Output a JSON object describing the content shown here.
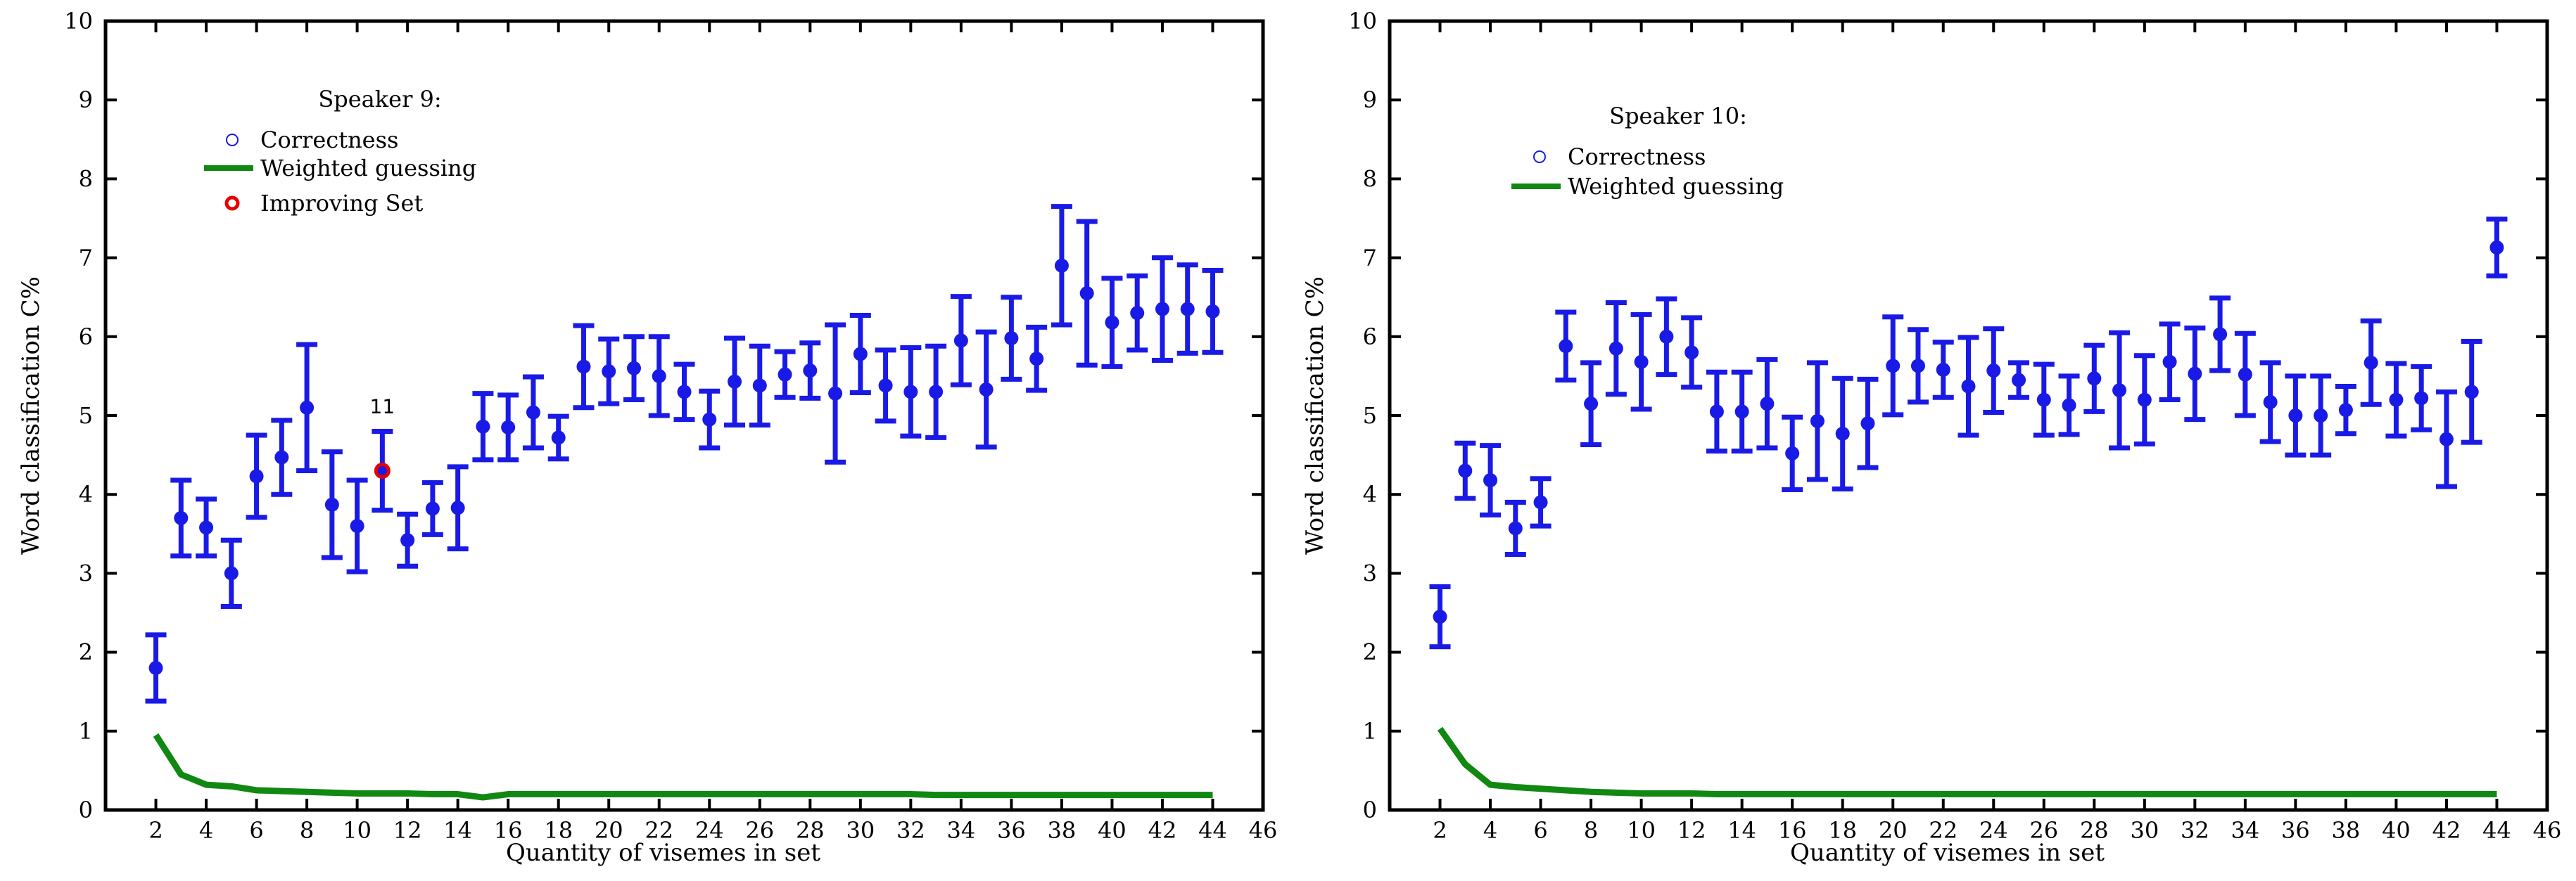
{
  "chart_data": [
    {
      "type": "scatter",
      "title": "Speaker 9:",
      "xlabel": "Quantity of visemes in set",
      "ylabel": "Word classification C%",
      "xlim": [
        0,
        46
      ],
      "ylim": [
        0,
        10
      ],
      "xticks": [
        2,
        4,
        6,
        8,
        10,
        12,
        14,
        16,
        18,
        20,
        22,
        24,
        26,
        28,
        30,
        32,
        34,
        36,
        38,
        40,
        42,
        44,
        46
      ],
      "yticks": [
        0,
        1,
        2,
        3,
        4,
        5,
        6,
        7,
        8,
        9,
        10
      ],
      "legend": [
        "Correctness",
        "Weighted guessing",
        "Improving Set"
      ],
      "legend_position": "top-left",
      "colors": {
        "correctness": "#1a1ae6",
        "guessing": "#118811",
        "improving": "#e60000"
      },
      "correctness": {
        "x": [
          2,
          3,
          4,
          5,
          6,
          7,
          8,
          9,
          10,
          11,
          12,
          13,
          14,
          15,
          16,
          17,
          18,
          19,
          20,
          21,
          22,
          23,
          24,
          25,
          26,
          27,
          28,
          29,
          30,
          31,
          32,
          33,
          34,
          35,
          36,
          37,
          38,
          39,
          40,
          41,
          42,
          43,
          44
        ],
        "y": [
          1.8,
          3.7,
          3.58,
          3.0,
          4.23,
          4.47,
          5.1,
          3.87,
          3.6,
          4.3,
          3.42,
          3.82,
          3.83,
          4.86,
          4.85,
          5.04,
          4.72,
          5.62,
          5.56,
          5.6,
          5.5,
          5.3,
          4.95,
          5.43,
          5.38,
          5.52,
          5.57,
          5.28,
          5.78,
          5.38,
          5.3,
          5.3,
          5.95,
          5.33,
          5.98,
          5.72,
          6.9,
          6.55,
          6.18,
          6.3,
          6.35,
          6.35,
          6.32
        ],
        "err": [
          0.42,
          0.48,
          0.36,
          0.42,
          0.52,
          0.47,
          0.8,
          0.67,
          0.58,
          0.5,
          0.33,
          0.33,
          0.52,
          0.42,
          0.41,
          0.45,
          0.27,
          0.52,
          0.41,
          0.4,
          0.5,
          0.35,
          0.36,
          0.55,
          0.5,
          0.29,
          0.35,
          0.87,
          0.49,
          0.45,
          0.56,
          0.58,
          0.56,
          0.73,
          0.52,
          0.4,
          0.75,
          0.91,
          0.56,
          0.47,
          0.65,
          0.56,
          0.52
        ]
      },
      "guessing": {
        "x": [
          2,
          3,
          4,
          5,
          6,
          7,
          8,
          9,
          10,
          11,
          12,
          13,
          14,
          15,
          16,
          17,
          18,
          19,
          20,
          21,
          22,
          23,
          24,
          25,
          26,
          27,
          28,
          29,
          30,
          31,
          32,
          33,
          34,
          35,
          36,
          37,
          38,
          39,
          40,
          41,
          42,
          43,
          44
        ],
        "y": [
          0.95,
          0.45,
          0.32,
          0.3,
          0.25,
          0.24,
          0.23,
          0.22,
          0.21,
          0.21,
          0.21,
          0.2,
          0.2,
          0.16,
          0.2,
          0.2,
          0.2,
          0.2,
          0.2,
          0.2,
          0.2,
          0.2,
          0.2,
          0.2,
          0.2,
          0.2,
          0.2,
          0.2,
          0.2,
          0.2,
          0.2,
          0.19,
          0.19,
          0.19,
          0.19,
          0.19,
          0.19,
          0.19,
          0.19,
          0.19,
          0.19,
          0.19,
          0.19
        ]
      },
      "improving": {
        "x": 11,
        "y": 4.3,
        "label": "11"
      }
    },
    {
      "type": "scatter",
      "title": "Speaker 10:",
      "xlabel": "Quantity of visemes in set",
      "ylabel": "Word classification C%",
      "xlim": [
        0,
        46
      ],
      "ylim": [
        0,
        10
      ],
      "xticks": [
        2,
        4,
        6,
        8,
        10,
        12,
        14,
        16,
        18,
        20,
        22,
        24,
        26,
        28,
        30,
        32,
        34,
        36,
        38,
        40,
        42,
        44,
        46
      ],
      "yticks": [
        0,
        1,
        2,
        3,
        4,
        5,
        6,
        7,
        8,
        9,
        10
      ],
      "legend": [
        "Correctness",
        "Weighted guessing"
      ],
      "legend_position": "top-left",
      "colors": {
        "correctness": "#1a1ae6",
        "guessing": "#118811"
      },
      "correctness": {
        "x": [
          2,
          3,
          4,
          5,
          6,
          7,
          8,
          9,
          10,
          11,
          12,
          13,
          14,
          15,
          16,
          17,
          18,
          19,
          20,
          21,
          22,
          23,
          24,
          25,
          26,
          27,
          28,
          29,
          30,
          31,
          32,
          33,
          34,
          35,
          36,
          37,
          38,
          39,
          40,
          41,
          42,
          43,
          44
        ],
        "y": [
          2.45,
          4.3,
          4.18,
          3.57,
          3.9,
          5.88,
          5.15,
          5.85,
          5.68,
          6.0,
          5.8,
          5.05,
          5.05,
          5.15,
          4.52,
          4.93,
          4.77,
          4.9,
          5.63,
          5.63,
          5.58,
          5.37,
          5.57,
          5.45,
          5.2,
          5.13,
          5.47,
          5.32,
          5.2,
          5.68,
          5.53,
          6.03,
          5.52,
          5.17,
          5.0,
          5.0,
          5.07,
          5.67,
          5.2,
          5.22,
          4.7,
          5.3,
          7.13
        ]
      },
      "guessing": {
        "x": [
          2,
          3,
          4,
          5,
          6,
          7,
          8,
          9,
          10,
          11,
          12,
          13,
          14,
          15,
          16,
          17,
          18,
          19,
          20,
          21,
          22,
          23,
          24,
          25,
          26,
          27,
          28,
          29,
          30,
          31,
          32,
          33,
          34,
          35,
          36,
          37,
          38,
          39,
          40,
          41,
          42,
          43,
          44
        ],
        "y": [
          1.03,
          0.58,
          0.32,
          0.29,
          0.27,
          0.25,
          0.23,
          0.22,
          0.21,
          0.21,
          0.21,
          0.2,
          0.2,
          0.2,
          0.2,
          0.2,
          0.2,
          0.2,
          0.2,
          0.2,
          0.2,
          0.2,
          0.2,
          0.2,
          0.2,
          0.2,
          0.2,
          0.2,
          0.2,
          0.2,
          0.2,
          0.2,
          0.2,
          0.2,
          0.2,
          0.2,
          0.2,
          0.2,
          0.2,
          0.2,
          0.2,
          0.2,
          0.2
        ]
      }
    }
  ]
}
